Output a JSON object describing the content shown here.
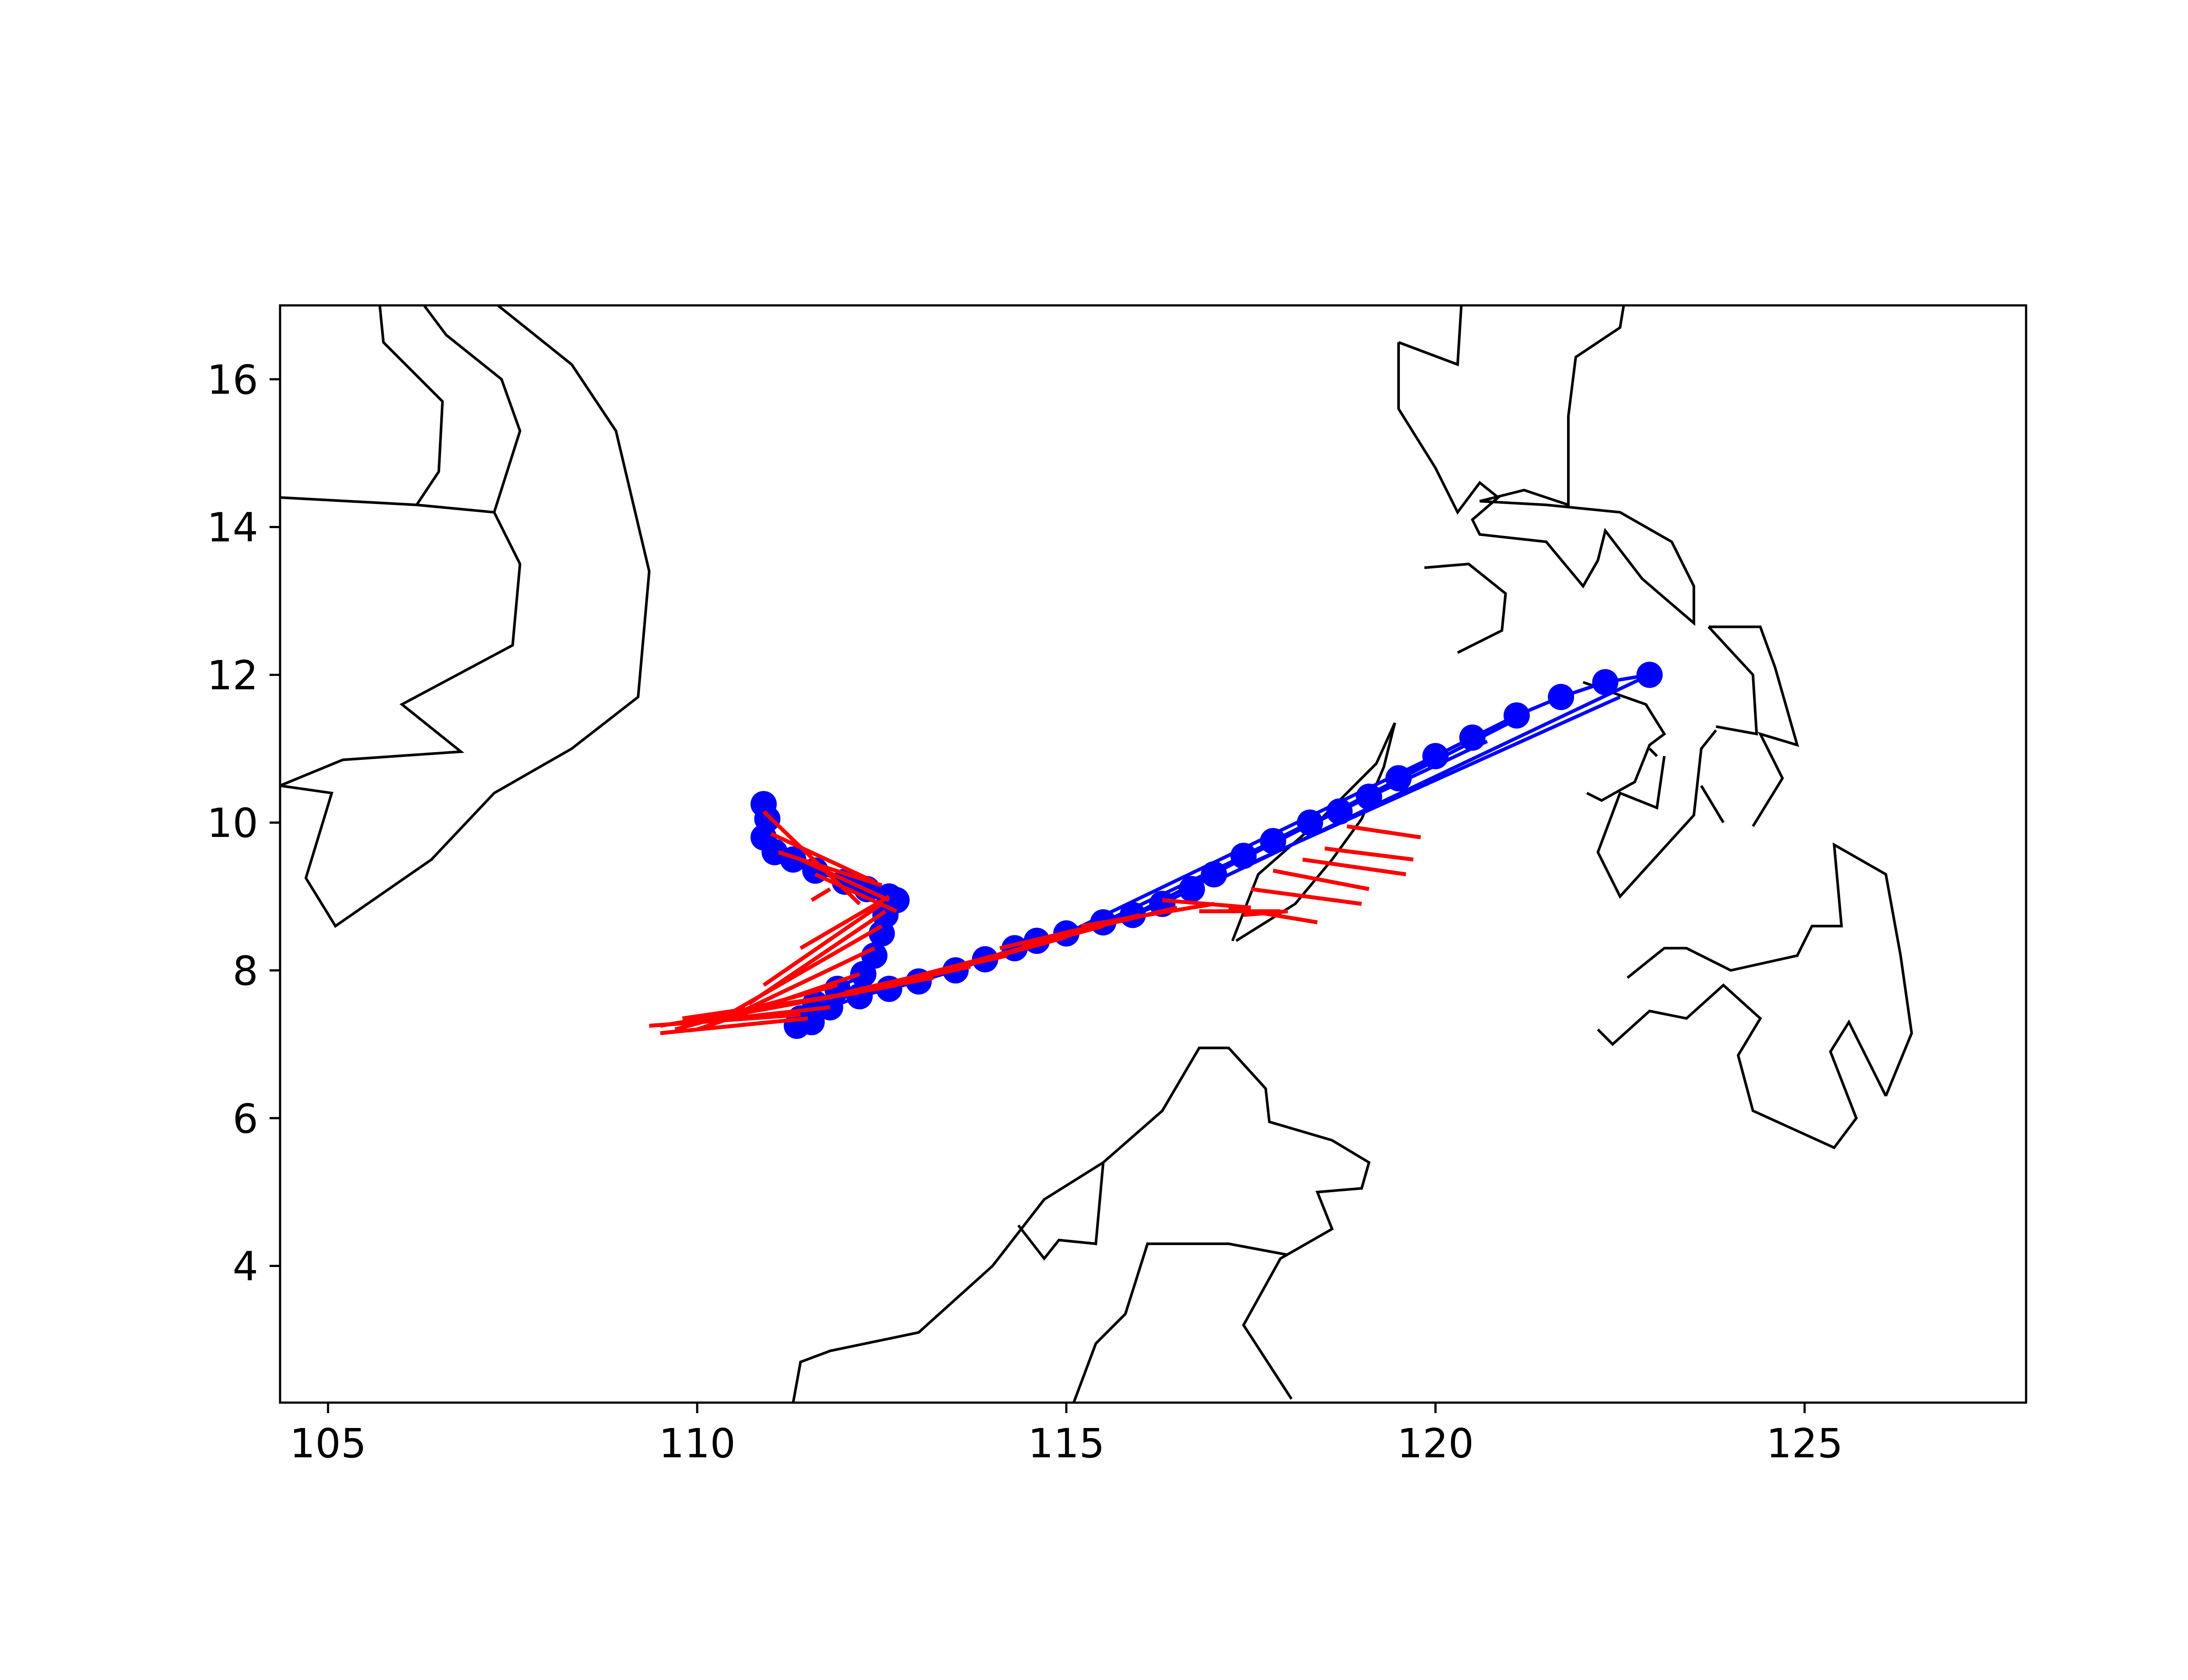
{
  "figure": {
    "xticks": [
      "105",
      "110",
      "115",
      "120",
      "125"
    ],
    "yticks": [
      "4",
      "6",
      "8",
      "10",
      "12",
      "14",
      "16"
    ],
    "colors": {
      "track": "#0000ff",
      "segments": "#ff0000",
      "coast": "#000000",
      "axes": "#000000"
    }
  },
  "chart_data": {
    "type": "map",
    "xlim": [
      104.35,
      128.0
    ],
    "ylim": [
      2.15,
      17.0
    ],
    "xticks": [
      105,
      110,
      115,
      120,
      125
    ],
    "yticks": [
      4,
      6,
      8,
      10,
      12,
      14,
      16
    ],
    "grid": false,
    "legend": null,
    "coastlines": [
      [
        [
          104.35,
          14.4
        ],
        [
          106.2,
          14.3
        ],
        [
          107.25,
          14.2
        ],
        [
          107.6,
          13.5
        ],
        [
          107.5,
          12.4
        ],
        [
          106.0,
          11.6
        ],
        [
          106.8,
          10.96
        ],
        [
          105.2,
          10.85
        ],
        [
          104.35,
          10.5
        ]
      ],
      [
        [
          104.35,
          10.5
        ],
        [
          105.05,
          10.4
        ],
        [
          104.7,
          9.25
        ],
        [
          105.1,
          8.6
        ],
        [
          106.4,
          9.5
        ],
        [
          107.25,
          10.4
        ],
        [
          108.3,
          11.0
        ],
        [
          109.2,
          11.7
        ],
        [
          109.35,
          13.4
        ],
        [
          108.9,
          15.3
        ],
        [
          108.3,
          16.2
        ],
        [
          107.3,
          17.0
        ]
      ],
      [
        [
          106.3,
          17.0
        ],
        [
          106.6,
          16.6
        ],
        [
          107.35,
          16.0
        ],
        [
          107.6,
          15.3
        ],
        [
          107.25,
          14.2
        ]
      ],
      [
        [
          105.7,
          17.0
        ],
        [
          105.75,
          16.5
        ],
        [
          106.55,
          15.7
        ],
        [
          106.5,
          14.75
        ],
        [
          106.2,
          14.3
        ]
      ],
      [
        [
          119.5,
          16.5
        ],
        [
          120.3,
          16.2
        ],
        [
          120.35,
          17.0
        ]
      ],
      [
        [
          119.5,
          16.5
        ],
        [
          119.5,
          15.6
        ],
        [
          120.0,
          14.8
        ],
        [
          120.3,
          14.2
        ],
        [
          120.6,
          14.6
        ],
        [
          120.85,
          14.4
        ],
        [
          120.5,
          14.1
        ],
        [
          120.6,
          13.9
        ],
        [
          121.5,
          13.8
        ],
        [
          122.0,
          13.2
        ],
        [
          122.2,
          13.55
        ],
        [
          122.3,
          13.95
        ],
        [
          122.8,
          13.3
        ],
        [
          123.5,
          12.7
        ],
        [
          123.5,
          13.2
        ],
        [
          123.2,
          13.8
        ],
        [
          122.5,
          14.2
        ],
        [
          121.5,
          14.3
        ],
        [
          120.6,
          14.35
        ],
        [
          121.2,
          14.5
        ],
        [
          121.8,
          14.3
        ],
        [
          121.8,
          15.5
        ],
        [
          121.9,
          16.3
        ],
        [
          122.5,
          16.7
        ],
        [
          122.55,
          17.0
        ]
      ],
      [
        [
          119.85,
          13.45
        ],
        [
          120.45,
          13.5
        ],
        [
          120.95,
          13.1
        ],
        [
          120.9,
          12.6
        ],
        [
          120.3,
          12.3
        ]
      ],
      [
        [
          123.7,
          12.65
        ],
        [
          124.4,
          12.65
        ],
        [
          124.6,
          12.1
        ],
        [
          124.9,
          11.05
        ],
        [
          124.4,
          11.2
        ],
        [
          124.7,
          10.6
        ],
        [
          124.3,
          9.95
        ]
      ],
      [
        [
          123.7,
          12.65
        ],
        [
          124.3,
          12.0
        ],
        [
          124.35,
          11.2
        ],
        [
          123.8,
          11.3
        ]
      ],
      [
        [
          122.0,
          11.9
        ],
        [
          122.85,
          11.6
        ],
        [
          123.1,
          11.2
        ],
        [
          122.9,
          11.05
        ],
        [
          122.7,
          10.55
        ],
        [
          122.25,
          10.3
        ],
        [
          122.05,
          10.4
        ]
      ],
      [
        [
          123.1,
          10.9
        ],
        [
          123.0,
          10.2
        ],
        [
          122.5,
          10.4
        ],
        [
          122.2,
          9.6
        ],
        [
          122.5,
          9.0
        ],
        [
          123.0,
          9.55
        ],
        [
          123.5,
          10.1
        ],
        [
          123.6,
          11.0
        ],
        [
          123.8,
          11.25
        ]
      ],
      [
        [
          123.0,
          10.9
        ],
        [
          122.9,
          11.0
        ]
      ],
      [
        [
          123.9,
          10.0
        ],
        [
          123.6,
          10.5
        ]
      ],
      [
        [
          122.6,
          7.9
        ],
        [
          123.1,
          8.3
        ],
        [
          123.4,
          8.3
        ],
        [
          124.0,
          8.0
        ],
        [
          124.9,
          8.2
        ],
        [
          125.1,
          8.6
        ],
        [
          125.5,
          8.6
        ],
        [
          125.4,
          9.7
        ],
        [
          126.1,
          9.3
        ],
        [
          126.3,
          8.2
        ],
        [
          126.45,
          7.15
        ],
        [
          126.1,
          6.3
        ]
      ],
      [
        [
          126.1,
          6.3
        ],
        [
          125.6,
          7.3
        ],
        [
          125.35,
          6.9
        ],
        [
          125.7,
          6.0
        ],
        [
          125.4,
          5.6
        ],
        [
          124.3,
          6.1
        ],
        [
          124.1,
          6.85
        ],
        [
          124.4,
          7.35
        ],
        [
          123.9,
          7.8
        ],
        [
          123.4,
          7.35
        ],
        [
          122.9,
          7.45
        ],
        [
          122.4,
          7.0
        ],
        [
          122.2,
          7.2
        ]
      ],
      [
        [
          117.3,
          8.4
        ],
        [
          118.1,
          8.9
        ],
        [
          118.6,
          9.5
        ],
        [
          119.0,
          10.05
        ],
        [
          119.3,
          10.75
        ],
        [
          119.45,
          11.35
        ],
        [
          119.2,
          10.8
        ],
        [
          118.4,
          10.0
        ],
        [
          117.6,
          9.3
        ],
        [
          117.25,
          8.4
        ]
      ],
      [
        [
          111.3,
          2.15
        ],
        [
          111.4,
          2.7
        ],
        [
          111.8,
          2.85
        ],
        [
          113.0,
          3.1
        ],
        [
          114.0,
          4.0
        ],
        [
          114.7,
          4.9
        ],
        [
          115.5,
          5.4
        ],
        [
          116.3,
          6.1
        ],
        [
          116.8,
          6.95
        ],
        [
          117.2,
          6.95
        ],
        [
          117.7,
          6.4
        ],
        [
          117.75,
          5.95
        ],
        [
          118.6,
          5.7
        ],
        [
          119.1,
          5.4
        ],
        [
          119.0,
          5.05
        ],
        [
          118.4,
          5.0
        ],
        [
          118.6,
          4.5
        ],
        [
          117.9,
          4.1
        ],
        [
          117.4,
          3.2
        ],
        [
          118.05,
          2.2
        ]
      ],
      [
        [
          115.1,
          2.15
        ],
        [
          115.4,
          2.95
        ],
        [
          115.8,
          3.35
        ],
        [
          116.1,
          4.3
        ],
        [
          117.2,
          4.3
        ],
        [
          118.0,
          4.15
        ]
      ],
      [
        [
          114.35,
          4.55
        ],
        [
          114.7,
          4.1
        ],
        [
          114.9,
          4.35
        ],
        [
          115.4,
          4.3
        ],
        [
          115.5,
          5.4
        ]
      ]
    ],
    "series": [
      {
        "style": "blue-track-with-markers",
        "points": [
          [
            110.9,
            10.25
          ],
          [
            110.95,
            10.05
          ],
          [
            110.9,
            9.8
          ],
          [
            111.05,
            9.6
          ],
          [
            111.3,
            9.5
          ],
          [
            111.6,
            9.35
          ],
          [
            112.0,
            9.2
          ],
          [
            112.3,
            9.1
          ],
          [
            112.6,
            9.0
          ],
          [
            112.7,
            8.95
          ],
          [
            112.55,
            8.75
          ],
          [
            112.5,
            8.5
          ],
          [
            112.4,
            8.2
          ],
          [
            112.25,
            7.95
          ],
          [
            111.9,
            7.75
          ],
          [
            111.6,
            7.55
          ],
          [
            111.4,
            7.35
          ],
          [
            111.35,
            7.25
          ],
          [
            111.55,
            7.3
          ],
          [
            111.8,
            7.5
          ],
          [
            112.2,
            7.65
          ],
          [
            112.6,
            7.75
          ],
          [
            113.0,
            7.85
          ],
          [
            113.5,
            8.0
          ],
          [
            113.9,
            8.15
          ],
          [
            114.3,
            8.3
          ],
          [
            114.6,
            8.4
          ],
          [
            115.0,
            8.5
          ],
          [
            115.5,
            8.65
          ],
          [
            115.9,
            8.75
          ],
          [
            116.3,
            8.9
          ],
          [
            116.7,
            9.1
          ],
          [
            117.0,
            9.3
          ],
          [
            117.4,
            9.55
          ],
          [
            117.8,
            9.75
          ],
          [
            118.3,
            10.0
          ],
          [
            118.7,
            10.15
          ],
          [
            119.1,
            10.35
          ],
          [
            119.5,
            10.6
          ],
          [
            120.0,
            10.9
          ],
          [
            120.5,
            11.15
          ],
          [
            121.1,
            11.45
          ],
          [
            121.7,
            11.7
          ],
          [
            122.3,
            11.9
          ],
          [
            122.9,
            12.0
          ]
        ]
      },
      {
        "style": "red-direction-segments",
        "segments": [
          [
            [
              110.9,
              10.15
            ],
            [
              112.2,
              8.9
            ]
          ],
          [
            [
              111.0,
              9.85
            ],
            [
              112.4,
              9.2
            ]
          ],
          [
            [
              111.1,
              9.6
            ],
            [
              112.5,
              9.15
            ]
          ],
          [
            [
              111.4,
              9.5
            ],
            [
              112.6,
              8.95
            ]
          ],
          [
            [
              111.6,
              9.3
            ],
            [
              112.7,
              8.8
            ]
          ],
          [
            [
              111.8,
              9.1
            ],
            [
              111.55,
              8.95
            ]
          ],
          [
            [
              112.6,
              9.0
            ],
            [
              111.4,
              8.3
            ]
          ],
          [
            [
              112.5,
              8.9
            ],
            [
              110.9,
              7.8
            ]
          ],
          [
            [
              112.55,
              8.8
            ],
            [
              110.7,
              7.55
            ]
          ],
          [
            [
              112.5,
              8.6
            ],
            [
              110.5,
              7.45
            ]
          ],
          [
            [
              112.4,
              8.3
            ],
            [
              110.3,
              7.3
            ]
          ],
          [
            [
              112.2,
              7.95
            ],
            [
              110.0,
              7.2
            ]
          ],
          [
            [
              111.9,
              7.8
            ],
            [
              109.7,
              7.2
            ]
          ],
          [
            [
              111.6,
              7.6
            ],
            [
              109.5,
              7.25
            ]
          ],
          [
            [
              111.4,
              7.4
            ],
            [
              109.35,
              7.25
            ]
          ],
          [
            [
              111.5,
              7.35
            ],
            [
              109.5,
              7.15
            ]
          ],
          [
            [
              111.8,
              7.5
            ],
            [
              110.0,
              7.3
            ]
          ],
          [
            [
              112.2,
              7.7
            ],
            [
              109.8,
              7.35
            ]
          ],
          [
            [
              112.7,
              7.8
            ],
            [
              110.5,
              7.4
            ]
          ],
          [
            [
              113.2,
              7.9
            ],
            [
              111.0,
              7.5
            ]
          ],
          [
            [
              113.7,
              8.05
            ],
            [
              111.6,
              7.6
            ]
          ],
          [
            [
              114.2,
              8.2
            ],
            [
              112.0,
              7.7
            ]
          ],
          [
            [
              114.6,
              8.35
            ],
            [
              112.5,
              7.8
            ]
          ],
          [
            [
              115.0,
              8.45
            ],
            [
              113.0,
              7.9
            ]
          ],
          [
            [
              115.5,
              8.6
            ],
            [
              113.3,
              8.0
            ]
          ],
          [
            [
              116.0,
              8.75
            ],
            [
              114.1,
              8.3
            ]
          ],
          [
            [
              116.5,
              8.85
            ],
            [
              114.4,
              8.35
            ]
          ],
          [
            [
              117.0,
              8.9
            ],
            [
              115.2,
              8.6
            ]
          ],
          [
            [
              117.5,
              8.85
            ],
            [
              116.3,
              8.95
            ]
          ],
          [
            [
              117.9,
              8.8
            ],
            [
              116.8,
              8.8
            ]
          ],
          [
            [
              118.4,
              8.65
            ],
            [
              117.2,
              8.85
            ]
          ],
          [
            [
              118.0,
              8.8
            ],
            [
              117.4,
              8.75
            ]
          ],
          [
            [
              117.5,
              9.1
            ],
            [
              119.0,
              8.9
            ]
          ],
          [
            [
              117.8,
              9.35
            ],
            [
              119.1,
              9.1
            ]
          ],
          [
            [
              118.2,
              9.5
            ],
            [
              119.6,
              9.3
            ]
          ],
          [
            [
              118.5,
              9.65
            ],
            [
              119.7,
              9.5
            ]
          ],
          [
            [
              118.8,
              9.95
            ],
            [
              119.8,
              9.8
            ]
          ]
        ]
      },
      {
        "style": "blue-lines-northeast",
        "segments": [
          [
            [
              115.0,
              8.5
            ],
            [
              120.1,
              10.95
            ]
          ],
          [
            [
              115.5,
              8.65
            ],
            [
              120.7,
              11.1
            ]
          ],
          [
            [
              116.0,
              8.8
            ],
            [
              121.1,
              11.4
            ]
          ],
          [
            [
              117.0,
              9.2
            ],
            [
              122.9,
              12.0
            ]
          ],
          [
            [
              117.5,
              9.45
            ],
            [
              122.5,
              11.7
            ]
          ]
        ]
      }
    ]
  }
}
